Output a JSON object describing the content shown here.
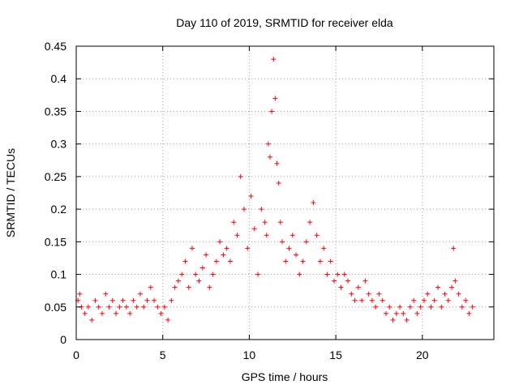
{
  "chart_data": {
    "type": "scatter",
    "title": "Day 110 of 2019, SRMTID for receiver elda",
    "xlabel": "GPS time / hours",
    "ylabel": "SRMTID / TECUs",
    "xlim": [
      0,
      24.133
    ],
    "ylim": [
      0,
      0.45
    ],
    "xticks": [
      0,
      5,
      10,
      15,
      20
    ],
    "yticks": [
      0,
      0.05,
      0.1,
      0.15,
      0.2,
      0.25,
      0.3,
      0.35,
      0.4,
      0.45
    ],
    "xtick_labels": [
      "0",
      "5",
      "10",
      "15",
      "20"
    ],
    "ytick_labels": [
      "0",
      "0.05",
      "0.1",
      "0.15",
      "0.2",
      "0.25",
      "0.3",
      "0.35",
      "0.4",
      "0.45"
    ],
    "grid": true,
    "marker": "+",
    "series": [
      {
        "name": "SRMTID",
        "color": "#ff0000",
        "x": [
          0.1,
          0.2,
          0.3,
          0.5,
          0.7,
          0.9,
          1.1,
          1.3,
          1.5,
          1.7,
          1.9,
          2.1,
          2.3,
          2.5,
          2.7,
          2.9,
          3.1,
          3.3,
          3.5,
          3.7,
          3.9,
          4.1,
          4.3,
          4.5,
          4.7,
          4.9,
          5.1,
          5.3,
          5.5,
          5.7,
          5.9,
          6.1,
          6.3,
          6.5,
          6.7,
          6.9,
          7.1,
          7.3,
          7.5,
          7.7,
          7.9,
          8.1,
          8.3,
          8.5,
          8.7,
          8.9,
          9.1,
          9.3,
          9.5,
          9.7,
          9.9,
          10.1,
          10.3,
          10.5,
          10.7,
          10.9,
          11.0,
          11.1,
          11.2,
          11.3,
          11.4,
          11.5,
          11.6,
          11.7,
          11.8,
          11.9,
          12.1,
          12.3,
          12.5,
          12.7,
          12.9,
          13.1,
          13.3,
          13.5,
          13.7,
          13.9,
          14.1,
          14.3,
          14.5,
          14.7,
          14.9,
          15.1,
          15.3,
          15.5,
          15.7,
          15.9,
          16.1,
          16.3,
          16.5,
          16.7,
          16.9,
          17.1,
          17.3,
          17.5,
          17.7,
          17.9,
          18.1,
          18.3,
          18.5,
          18.7,
          18.9,
          19.1,
          19.3,
          19.5,
          19.7,
          19.9,
          20.1,
          20.3,
          20.5,
          20.7,
          20.9,
          21.1,
          21.3,
          21.5,
          21.7,
          21.8,
          21.9,
          22.1,
          22.3,
          22.5,
          22.7,
          22.9
        ],
        "y": [
          0.06,
          0.07,
          0.05,
          0.04,
          0.05,
          0.03,
          0.06,
          0.05,
          0.04,
          0.07,
          0.05,
          0.06,
          0.04,
          0.05,
          0.06,
          0.05,
          0.04,
          0.06,
          0.05,
          0.07,
          0.05,
          0.06,
          0.08,
          0.06,
          0.05,
          0.04,
          0.05,
          0.03,
          0.06,
          0.08,
          0.09,
          0.1,
          0.12,
          0.08,
          0.14,
          0.1,
          0.09,
          0.11,
          0.13,
          0.08,
          0.1,
          0.12,
          0.15,
          0.13,
          0.14,
          0.12,
          0.18,
          0.16,
          0.25,
          0.2,
          0.14,
          0.22,
          0.17,
          0.1,
          0.2,
          0.18,
          0.16,
          0.3,
          0.28,
          0.35,
          0.43,
          0.37,
          0.27,
          0.24,
          0.18,
          0.15,
          0.12,
          0.14,
          0.16,
          0.13,
          0.1,
          0.12,
          0.15,
          0.18,
          0.21,
          0.16,
          0.12,
          0.14,
          0.1,
          0.12,
          0.09,
          0.1,
          0.08,
          0.1,
          0.09,
          0.07,
          0.06,
          0.08,
          0.06,
          0.09,
          0.07,
          0.06,
          0.05,
          0.07,
          0.06,
          0.04,
          0.05,
          0.03,
          0.04,
          0.05,
          0.04,
          0.03,
          0.05,
          0.06,
          0.04,
          0.05,
          0.06,
          0.07,
          0.05,
          0.06,
          0.08,
          0.05,
          0.07,
          0.06,
          0.08,
          0.14,
          0.09,
          0.07,
          0.05,
          0.06,
          0.04,
          0.05
        ]
      }
    ]
  }
}
